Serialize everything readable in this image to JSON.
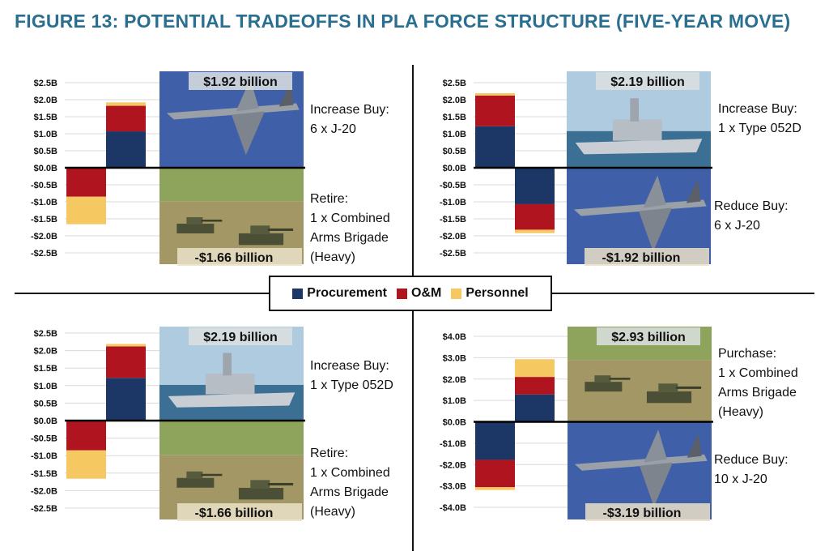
{
  "title": "FIGURE 13: POTENTIAL TRADEOFFS IN PLA FORCE STRUCTURE (FIVE-YEAR MOVE)",
  "colors": {
    "procurement": "#1c3766",
    "om": "#b0141e",
    "personnel": "#f5c862"
  },
  "legend": [
    {
      "label": "Procurement",
      "color": "#1c3766"
    },
    {
      "label": "O&M",
      "color": "#b0141e"
    },
    {
      "label": "Personnel",
      "color": "#f5c862"
    }
  ],
  "chart_data": [
    {
      "type": "bar",
      "stacked": true,
      "ylim": [
        -2.5,
        2.5
      ],
      "yticks": [
        "$2.5B",
        "$2.0B",
        "$1.5B",
        "$1.0B",
        "$0.5B",
        "$0.0B",
        "-$0.5B",
        "-$1.0B",
        "-$1.5B",
        "-$2.0B",
        "-$2.5B"
      ],
      "series_names": [
        "Procurement",
        "O&M",
        "Personnel"
      ],
      "bars": [
        {
          "position": "left",
          "values": [
            0,
            -0.85,
            -0.81
          ]
        },
        {
          "position": "right",
          "values": [
            1.07,
            0.75,
            0.1
          ]
        }
      ],
      "top_label": "$1.92 billion",
      "bottom_label": "-$1.66 billion",
      "top_photo": "j20-fighter-photo",
      "bottom_photo": "tank-brigade-photo",
      "top_caption": "Increase Buy:\n6 x J-20",
      "bottom_caption": "Retire:\n1 x Combined\nArms Brigade\n(Heavy)"
    },
    {
      "type": "bar",
      "stacked": true,
      "ylim": [
        -2.5,
        2.5
      ],
      "yticks": [
        "$2.5B",
        "$2.0B",
        "$1.5B",
        "$1.0B",
        "$0.5B",
        "$0.0B",
        "-$0.5B",
        "-$1.0B",
        "-$1.5B",
        "-$2.0B",
        "-$2.5B"
      ],
      "series_names": [
        "Procurement",
        "O&M",
        "Personnel"
      ],
      "bars": [
        {
          "position": "left",
          "values": [
            1.22,
            0.9,
            0.07
          ]
        },
        {
          "position": "right",
          "values": [
            -1.07,
            -0.75,
            -0.1
          ]
        }
      ],
      "top_label": "$2.19 billion",
      "bottom_label": "-$1.92 billion",
      "top_photo": "destroyer-ship-photo",
      "bottom_photo": "j20-fighter-photo",
      "top_caption": "Increase Buy:\n1 x Type 052D",
      "bottom_caption": "Reduce Buy:\n6 x J-20"
    },
    {
      "type": "bar",
      "stacked": true,
      "ylim": [
        -2.5,
        2.5
      ],
      "yticks": [
        "$2.5B",
        "$2.0B",
        "$1.5B",
        "$1.0B",
        "$0.5B",
        "$0.0B",
        "-$0.5B",
        "-$1.0B",
        "-$1.5B",
        "-$2.0B",
        "-$2.5B"
      ],
      "series_names": [
        "Procurement",
        "O&M",
        "Personnel"
      ],
      "bars": [
        {
          "position": "left",
          "values": [
            0,
            -0.85,
            -0.81
          ]
        },
        {
          "position": "right",
          "values": [
            1.22,
            0.9,
            0.07
          ]
        }
      ],
      "top_label": "$2.19 billion",
      "bottom_label": "-$1.66 billion",
      "top_photo": "destroyer-ship-photo",
      "bottom_photo": "tank-brigade-photo",
      "top_caption": "Increase Buy:\n1 x Type 052D",
      "bottom_caption": "Retire:\n1 x Combined\nArms Brigade\n(Heavy)"
    },
    {
      "type": "bar",
      "stacked": true,
      "ylim": [
        -4.0,
        4.0
      ],
      "yticks": [
        "$4.0B",
        "$3.0B",
        "$2.0B",
        "$1.0B",
        "$0.0B",
        "-$1.0B",
        "-$2.0B",
        "-$3.0B",
        "-$4.0B"
      ],
      "series_names": [
        "Procurement",
        "O&M",
        "Personnel"
      ],
      "bars": [
        {
          "position": "left",
          "values": [
            -1.78,
            -1.28,
            -0.13
          ]
        },
        {
          "position": "right",
          "values": [
            1.28,
            0.82,
            0.83
          ]
        }
      ],
      "top_label": "$2.93 billion",
      "bottom_label": "-$3.19 billion",
      "top_photo": "tank-brigade-photo",
      "bottom_photo": "j20-fighter-photo",
      "top_caption": "Purchase:\n1 x Combined\nArms Brigade\n(Heavy)",
      "bottom_caption": "Reduce Buy:\n10 x J-20"
    }
  ]
}
